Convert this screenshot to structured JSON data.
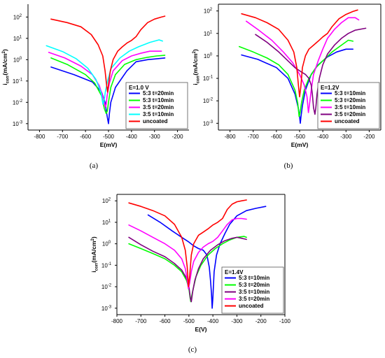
{
  "chart_data": [
    {
      "type": "line",
      "panel_caption": "(a)",
      "xlabel": "E(mV)",
      "ylabel": "icorr(mA/cm2)",
      "xlim": [
        -850,
        -150
      ],
      "ylim": [
        0.0005,
        400
      ],
      "y_scale": "log",
      "xticks": [
        "-800",
        "-700",
        "-600",
        "-500",
        "-400",
        "-300",
        "-200"
      ],
      "yticks": [
        "10-3",
        "10-2",
        "10-1",
        "100",
        "101",
        "102"
      ],
      "legend_title": "E=1.0 V",
      "legend_position": "bottom-right",
      "series": [
        {
          "name": "5:3 t=20min",
          "color": "#0000ff",
          "x": [
            -750,
            -650,
            -570,
            -530,
            -515,
            -508,
            -503,
            -500,
            -496,
            -490,
            -470,
            -420,
            -380,
            -330,
            -290,
            -255
          ],
          "y": [
            0.45,
            0.2,
            0.09,
            0.03,
            0.01,
            0.003,
            0.0015,
            0.001,
            0.003,
            0.01,
            0.05,
            0.3,
            0.8,
            1.0,
            1.1,
            1.2
          ]
        },
        {
          "name": "5:3 t=10min",
          "color": "#00ff00",
          "x": [
            -750,
            -680,
            -600,
            -560,
            -530,
            -518,
            -510,
            -505,
            -500,
            -490,
            -470,
            -430,
            -380,
            -330,
            -290,
            -255
          ],
          "y": [
            1.2,
            0.6,
            0.2,
            0.08,
            0.02,
            0.005,
            0.003,
            0.004,
            0.01,
            0.05,
            0.2,
            0.6,
            1.0,
            1.3,
            1.5,
            1.6
          ]
        },
        {
          "name": "3:5 t=20min",
          "color": "#ff00ff",
          "x": [
            -760,
            -690,
            -620,
            -570,
            -540,
            -522,
            -514,
            -510,
            -506,
            -496,
            -480,
            -440,
            -400,
            -360,
            -320,
            -270
          ],
          "y": [
            2.2,
            1.2,
            0.5,
            0.2,
            0.06,
            0.015,
            0.006,
            0.008,
            0.02,
            0.08,
            0.3,
            0.9,
            1.5,
            2.0,
            2.5,
            2.5
          ]
        },
        {
          "name": "3:5 t=10min",
          "color": "#00ffff",
          "x": [
            -770,
            -700,
            -640,
            -590,
            -555,
            -533,
            -524,
            -519,
            -514,
            -504,
            -488,
            -450,
            -410,
            -370,
            -320,
            -280,
            -265
          ],
          "y": [
            4.5,
            2.4,
            1.1,
            0.4,
            0.12,
            0.03,
            0.008,
            0.012,
            0.03,
            0.1,
            0.4,
            1.2,
            2.5,
            4.0,
            6.5,
            8.5,
            7.5
          ]
        },
        {
          "name": "uncoated",
          "color": "#ff0000",
          "x": [
            -750,
            -680,
            -620,
            -575,
            -545,
            -525,
            -515,
            -508,
            -504,
            -499,
            -492,
            -480,
            -460,
            -440,
            -420,
            -400,
            -380,
            -360,
            -330,
            -300,
            -270,
            -255
          ],
          "y": [
            80,
            55,
            35,
            15,
            5,
            1.5,
            0.3,
            0.06,
            0.03,
            0.08,
            0.3,
            1.0,
            2.5,
            4.0,
            6.0,
            8.0,
            12,
            25,
            55,
            80,
            100,
            110
          ]
        }
      ]
    },
    {
      "type": "line",
      "panel_caption": "(b)",
      "xlabel": "E(mV)",
      "ylabel": "icorr(mA/cm2)",
      "xlim": [
        -850,
        -150
      ],
      "ylim": [
        0.0005,
        200
      ],
      "y_scale": "log",
      "xticks": [
        "-800",
        "-700",
        "-600",
        "-500",
        "-400",
        "-300",
        "-200"
      ],
      "yticks": [
        "10-3",
        "10-2",
        "10-1",
        "100",
        "101",
        "102"
      ],
      "legend_title": "E=1.2V",
      "legend_position": "bottom-right",
      "series": [
        {
          "name": "5:3 t=10min",
          "color": "#0000ff",
          "x": [
            -750,
            -680,
            -600,
            -550,
            -520,
            -506,
            -500,
            -497,
            -494,
            -488,
            -475,
            -450,
            -420,
            -380,
            -340,
            -300,
            -270
          ],
          "y": [
            1.1,
            0.7,
            0.3,
            0.1,
            0.02,
            0.005,
            0.002,
            0.001,
            0.002,
            0.006,
            0.03,
            0.15,
            0.4,
            0.9,
            1.5,
            2.0,
            2.0
          ]
        },
        {
          "name": "5:3 t=20min",
          "color": "#00ff00",
          "x": [
            -760,
            -700,
            -640,
            -590,
            -550,
            -520,
            -508,
            -502,
            -498,
            -492,
            -480,
            -460,
            -430,
            -400,
            -360,
            -320,
            -290,
            -270
          ],
          "y": [
            2.6,
            1.5,
            0.8,
            0.4,
            0.15,
            0.03,
            0.008,
            0.002,
            0.003,
            0.008,
            0.03,
            0.1,
            0.3,
            0.6,
            1.5,
            3.0,
            5.0,
            4.5
          ]
        },
        {
          "name": "3:5 t=10min",
          "color": "#ff00ff",
          "x": [
            -730,
            -680,
            -620,
            -570,
            -530,
            -500,
            -480,
            -468,
            -462,
            -458,
            -450,
            -440,
            -420,
            -400,
            -380,
            -350,
            -320,
            -290,
            -260,
            -245
          ],
          "y": [
            35,
            15,
            5,
            1.5,
            0.5,
            0.15,
            0.05,
            0.015,
            0.003,
            0.006,
            0.03,
            0.15,
            0.6,
            2.0,
            6.0,
            15,
            30,
            50,
            50,
            40
          ]
        },
        {
          "name": "3:5 t=20min",
          "color": "#800080",
          "x": [
            -690,
            -640,
            -590,
            -550,
            -520,
            -495,
            -475,
            -460,
            -450,
            -445,
            -440,
            -434,
            -430,
            -425,
            -415,
            -400,
            -380,
            -350,
            -320,
            -290,
            -260,
            -215
          ],
          "y": [
            9,
            4,
            1.5,
            0.6,
            0.3,
            0.2,
            0.15,
            0.1,
            0.05,
            0.02,
            0.005,
            0.0025,
            0.005,
            0.02,
            0.1,
            0.4,
            1.2,
            3.0,
            6.0,
            10,
            14,
            17
          ]
        },
        {
          "name": "uncoated",
          "color": "#ff0000",
          "x": [
            -750,
            -690,
            -640,
            -590,
            -550,
            -525,
            -512,
            -505,
            -500,
            -495,
            -488,
            -475,
            -460,
            -440,
            -420,
            -400,
            -380,
            -360,
            -330,
            -300,
            -270,
            -250
          ],
          "y": [
            75,
            50,
            30,
            15,
            5,
            1.5,
            0.3,
            0.05,
            0.015,
            0.04,
            0.3,
            1.0,
            2.0,
            3.0,
            4.5,
            7.0,
            10,
            20,
            45,
            70,
            95,
            110
          ]
        }
      ]
    },
    {
      "type": "line",
      "panel_caption": "(c)",
      "xlabel": "E(V)",
      "ylabel": "icorr(mA/cm2)",
      "xlim": [
        -800,
        -100
      ],
      "ylim": [
        0.0005,
        200
      ],
      "y_scale": "log",
      "xticks": [
        "-800",
        "-700",
        "-600",
        "-500",
        "-400",
        "-300",
        "-200",
        "-100"
      ],
      "yticks": [
        "10-3",
        "10-2",
        "10-1",
        "100",
        "101",
        "102"
      ],
      "legend_title": "E=1.4V",
      "legend_position": "bottom-right",
      "series": [
        {
          "name": "5:3 t=10min",
          "color": "#0000ff",
          "x": [
            -670,
            -620,
            -570,
            -530,
            -500,
            -480,
            -460,
            -440,
            -425,
            -415,
            -410,
            -406,
            -403,
            -400,
            -395,
            -385,
            -370,
            -350,
            -330,
            -300,
            -260,
            -220,
            -180
          ],
          "y": [
            22,
            10,
            4,
            2,
            1.2,
            0.8,
            0.6,
            0.5,
            0.3,
            0.08,
            0.02,
            0.005,
            0.001,
            0.003,
            0.05,
            0.3,
            1.0,
            3.0,
            8.0,
            20,
            35,
            45,
            55
          ]
        },
        {
          "name": "5:3 t=20min",
          "color": "#00ff00",
          "x": [
            -750,
            -700,
            -650,
            -600,
            -560,
            -530,
            -510,
            -500,
            -495,
            -492,
            -488,
            -480,
            -470,
            -450,
            -420,
            -390,
            -360,
            -330,
            -300,
            -270,
            -260
          ],
          "y": [
            1.0,
            0.6,
            0.35,
            0.2,
            0.1,
            0.05,
            0.02,
            0.008,
            0.003,
            0.002,
            0.004,
            0.01,
            0.03,
            0.1,
            0.3,
            0.6,
            1.0,
            1.5,
            2.0,
            2.2,
            2.0
          ]
        },
        {
          "name": "3:5 t=10min",
          "color": "#800080",
          "x": [
            -750,
            -700,
            -650,
            -600,
            -560,
            -530,
            -510,
            -500,
            -494,
            -490,
            -484,
            -475,
            -460,
            -440,
            -410,
            -380,
            -350,
            -320,
            -300,
            -280,
            -260
          ],
          "y": [
            2.0,
            0.9,
            0.45,
            0.25,
            0.12,
            0.06,
            0.025,
            0.01,
            0.003,
            0.002,
            0.006,
            0.02,
            0.07,
            0.2,
            0.5,
            0.9,
            1.4,
            1.8,
            2.0,
            1.8,
            1.6
          ]
        },
        {
          "name": "3:5 t=20min",
          "color": "#ff00ff",
          "x": [
            -750,
            -700,
            -650,
            -600,
            -560,
            -530,
            -515,
            -507,
            -502,
            -497,
            -490,
            -480,
            -460,
            -440,
            -420,
            -400,
            -380,
            -360,
            -340,
            -320,
            -300,
            -280,
            -260
          ],
          "y": [
            7.5,
            4,
            2,
            1,
            0.5,
            0.2,
            0.07,
            0.02,
            0.008,
            0.015,
            0.05,
            0.15,
            0.4,
            0.7,
            1.0,
            1.3,
            2.0,
            4.0,
            8.0,
            13,
            15,
            15,
            14
          ]
        },
        {
          "name": "uncoated",
          "color": "#ff0000",
          "x": [
            -750,
            -700,
            -650,
            -600,
            -560,
            -530,
            -515,
            -507,
            -502,
            -497,
            -490,
            -480,
            -460,
            -440,
            -420,
            -400,
            -380,
            -360,
            -340,
            -320,
            -300,
            -280,
            -260
          ],
          "y": [
            80,
            55,
            35,
            20,
            8,
            2,
            0.5,
            0.08,
            0.01,
            0.03,
            0.3,
            1.0,
            2.5,
            3.5,
            5.0,
            7.5,
            10,
            15,
            40,
            70,
            90,
            100,
            110
          ]
        }
      ]
    }
  ]
}
